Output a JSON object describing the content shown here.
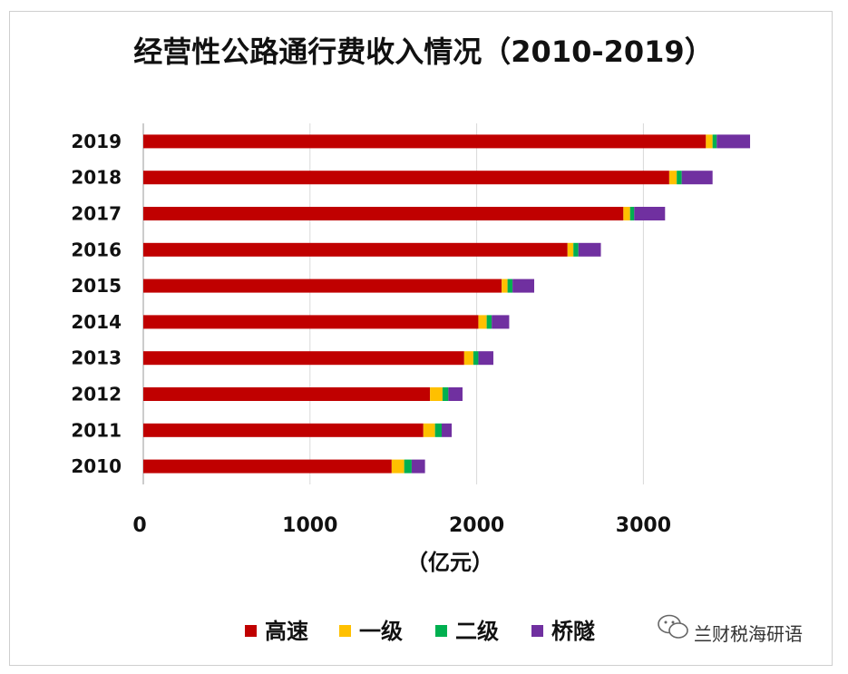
{
  "chart_data": {
    "type": "bar",
    "orientation": "horizontal",
    "stacked": true,
    "title": "经营性公路通行费收入情况（2010-2019）",
    "xlabel": "（亿元）",
    "ylabel": "",
    "xlim": [
      0,
      3800
    ],
    "xticks": [
      0,
      1000,
      2000,
      3000
    ],
    "grid": true,
    "legend_position": "bottom",
    "categories": [
      "2019",
      "2018",
      "2017",
      "2016",
      "2015",
      "2014",
      "2013",
      "2012",
      "2011",
      "2010"
    ],
    "series": [
      {
        "name": "高速",
        "color": "#c00000",
        "values": [
          3375,
          3155,
          2880,
          2545,
          2150,
          2010,
          1925,
          1720,
          1680,
          1490
        ]
      },
      {
        "name": "一级",
        "color": "#ffc000",
        "values": [
          40,
          45,
          40,
          35,
          35,
          50,
          55,
          75,
          70,
          75
        ]
      },
      {
        "name": "二级",
        "color": "#00b050",
        "values": [
          25,
          30,
          25,
          30,
          30,
          30,
          30,
          35,
          40,
          45
        ]
      },
      {
        "name": "桥隧",
        "color": "#7030a0",
        "values": [
          200,
          185,
          185,
          135,
          130,
          105,
          90,
          85,
          60,
          80
        ]
      }
    ]
  },
  "watermark": {
    "icon": "wechat-icon",
    "text": "兰财税海研语"
  }
}
